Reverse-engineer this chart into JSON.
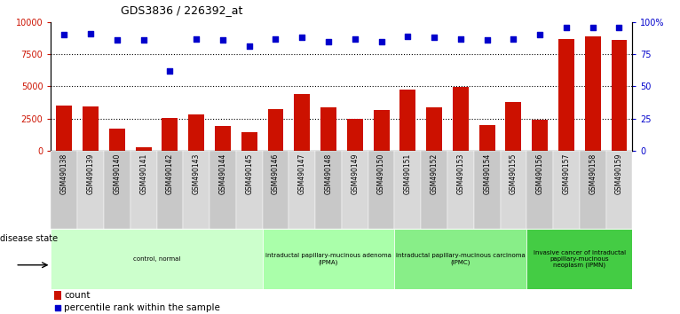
{
  "title": "GDS3836 / 226392_at",
  "samples": [
    "GSM490138",
    "GSM490139",
    "GSM490140",
    "GSM490141",
    "GSM490142",
    "GSM490143",
    "GSM490144",
    "GSM490145",
    "GSM490146",
    "GSM490147",
    "GSM490148",
    "GSM490149",
    "GSM490150",
    "GSM490151",
    "GSM490152",
    "GSM490153",
    "GSM490154",
    "GSM490155",
    "GSM490156",
    "GSM490157",
    "GSM490158",
    "GSM490159"
  ],
  "counts": [
    3500,
    3450,
    1750,
    300,
    2550,
    2800,
    1900,
    1450,
    3250,
    4400,
    3350,
    2500,
    3150,
    4750,
    3400,
    4950,
    2000,
    3750,
    2400,
    8700,
    8900,
    8600
  ],
  "percentiles": [
    90,
    91,
    86,
    86,
    62,
    87,
    86,
    81,
    87,
    88,
    85,
    87,
    85,
    89,
    88,
    87,
    86,
    87,
    90,
    96,
    96,
    96
  ],
  "groups": [
    {
      "label": "control, normal",
      "start": 0,
      "end": 8,
      "color": "#ccffcc"
    },
    {
      "label": "intraductal papillary-mucinous adenoma\n(IPMA)",
      "start": 8,
      "end": 13,
      "color": "#aaffaa"
    },
    {
      "label": "intraductal papillary-mucinous carcinoma\n(IPMC)",
      "start": 13,
      "end": 18,
      "color": "#88ee88"
    },
    {
      "label": "invasive cancer of intraductal\npapillary-mucinous\nneoplasm (IPMN)",
      "start": 18,
      "end": 22,
      "color": "#44cc44"
    }
  ],
  "bar_color": "#cc1100",
  "dot_color": "#0000cc",
  "background_color": "#ffffff"
}
